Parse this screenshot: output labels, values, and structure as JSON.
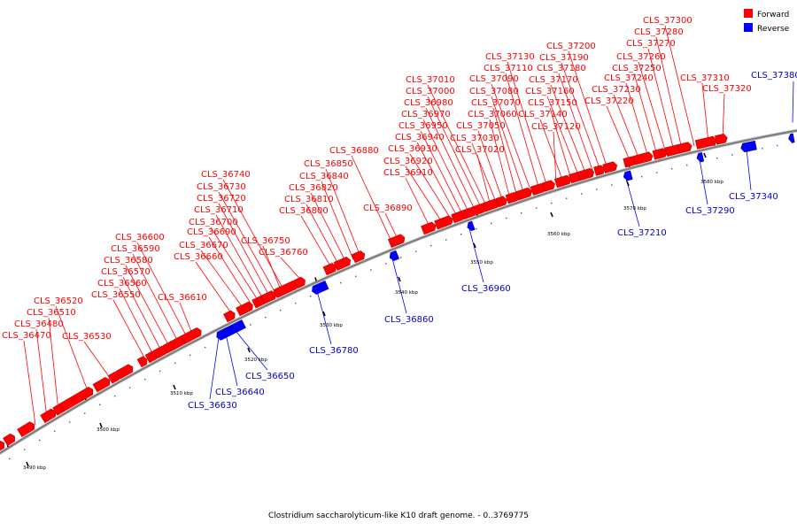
{
  "caption": "Clostridium saccharolyticum-like K10 draft genome. - 0..3769775",
  "legend": [
    {
      "label": "Forward",
      "color": "#ff0000"
    },
    {
      "label": "Reverse",
      "color": "#0000ff"
    }
  ],
  "colors": {
    "forward": "#ff0000",
    "reverse": "#0000ff",
    "backbone": "#808080"
  },
  "ticks": [
    "3490 kbp",
    "3500 kbp",
    "3510 kbp",
    "3520 kbp",
    "3530 kbp",
    "3540 kbp",
    "3550 kbp",
    "3560 kbp",
    "3570 kbp",
    "3580 kbp"
  ],
  "forward_labels": [
    "CLS_36470",
    "CLS_36480",
    "CLS_36510",
    "CLS_36520",
    "CLS_36530",
    "CLS_36550",
    "CLS_36560",
    "CLS_36570",
    "CLS_36580",
    "CLS_36590",
    "CLS_36600",
    "CLS_36610",
    "CLS_36660",
    "CLS_36670",
    "CLS_36690",
    "CLS_36700",
    "CLS_36710",
    "CLS_36720",
    "CLS_36730",
    "CLS_36740",
    "CLS_36750",
    "CLS_36760",
    "CLS_36800",
    "CLS_36810",
    "CLS_36820",
    "CLS_36840",
    "CLS_36850",
    "CLS_36880",
    "CLS_36890",
    "CLS_36910",
    "CLS_36920",
    "CLS_36930",
    "CLS_36940",
    "CLS_36950",
    "CLS_36970",
    "CLS_36980",
    "CLS_37000",
    "CLS_37010",
    "CLS_37020",
    "CLS_37030",
    "CLS_37050",
    "CLS_37060",
    "CLS_37070",
    "CLS_37080",
    "CLS_37090",
    "CLS_37110",
    "CLS_37130",
    "CLS_37120",
    "CLS_37140",
    "CLS_37150",
    "CLS_37160",
    "CLS_37170",
    "CLS_37180",
    "CLS_37190",
    "CLS_37200",
    "CLS_37220",
    "CLS_37230",
    "CLS_37240",
    "CLS_37250",
    "CLS_37260",
    "CLS_37270",
    "CLS_37280",
    "CLS_37300",
    "CLS_37310",
    "CLS_37320"
  ],
  "reverse_labels": [
    "CLS_36630",
    "CLS_36640",
    "CLS_36650",
    "CLS_36780",
    "CLS_36860",
    "CLS_36960",
    "CLS_37210",
    "CLS_37290",
    "CLS_37340",
    "CLS_37380"
  ]
}
